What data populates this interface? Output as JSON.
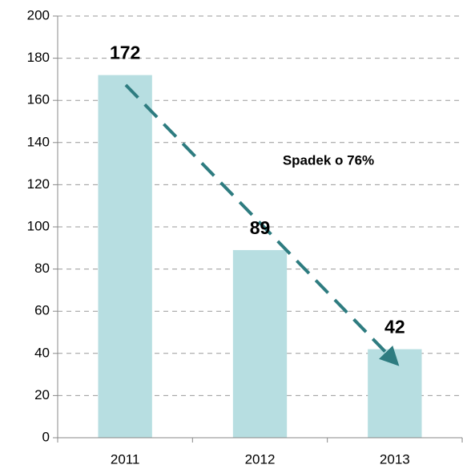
{
  "chart_data": {
    "type": "bar",
    "categories": [
      "2011",
      "2012",
      "2013"
    ],
    "values": [
      172,
      89,
      42
    ],
    "color": "#b7dee1",
    "ylim": [
      0,
      200
    ],
    "yticks": [
      0,
      20,
      40,
      60,
      80,
      100,
      120,
      140,
      160,
      180,
      200
    ],
    "grid": true,
    "annotation": "Spadek o 76%"
  }
}
